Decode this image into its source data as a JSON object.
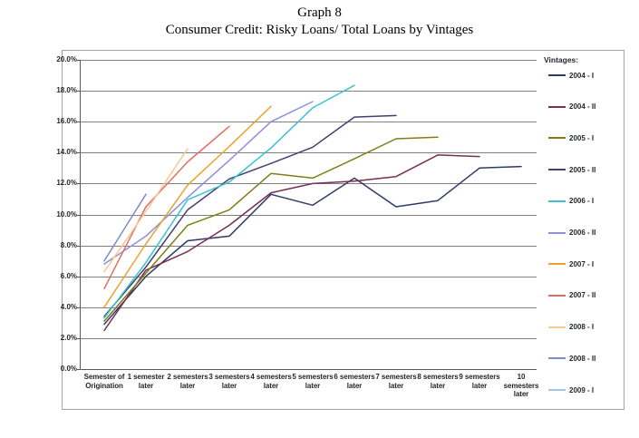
{
  "title": {
    "line1": "Graph 8",
    "line2": "Consumer Credit: Risky Loans/ Total Loans by Vintages"
  },
  "legend": {
    "header": "Vintages:"
  },
  "chart_data": {
    "type": "line",
    "title": "Graph 8",
    "subtitle": "Consumer Credit: Risky Loans/ Total Loans by Vintages",
    "xlabel": "",
    "ylabel": "",
    "grid": true,
    "legend_position": "right",
    "layout": {
      "grid_color": "#808080",
      "axis_color": "#595959",
      "border_color": "#a6a6a6",
      "label_color": "#262626"
    },
    "y_axis": {
      "min": 0,
      "max": 20,
      "step": 2,
      "unit": "%",
      "tick_labels": [
        "0.0%",
        "2.0%",
        "4.0%",
        "6.0%",
        "8.0%",
        "10.0%",
        "12.0%",
        "14.0%",
        "16.0%",
        "18.0%",
        "20.0%"
      ]
    },
    "categories": [
      "Semester of\nOrigination",
      "1 semester\nlater",
      "2 semesters\nlater",
      "3 semesters\nlater",
      "4 semesters\nlater",
      "5 semesters\nlater",
      "6 semesters\nlater",
      "7 semesters\nlater",
      "8 semesters\nlater",
      "9 semesters\nlater",
      "10\nsemesters\nlater"
    ],
    "series": [
      {
        "name": "2004 - I",
        "color": "#2e3b68",
        "values": [
          2.9,
          6.0,
          8.3,
          8.6,
          11.3,
          10.6,
          12.35,
          10.5,
          10.9,
          13.0,
          13.1
        ]
      },
      {
        "name": "2004 - II",
        "color": "#7a2e52",
        "values": [
          2.5,
          6.4,
          7.6,
          9.3,
          11.4,
          12.0,
          12.15,
          12.45,
          13.85,
          13.75
        ]
      },
      {
        "name": "2005 - I",
        "color": "#7f7d15",
        "values": [
          3.1,
          6.2,
          9.3,
          10.3,
          12.65,
          12.35,
          13.6,
          14.9,
          15.0
        ]
      },
      {
        "name": "2005 - II",
        "color": "#443e72",
        "values": [
          3.4,
          6.6,
          10.3,
          12.3,
          13.3,
          14.35,
          16.3,
          16.4
        ]
      },
      {
        "name": "2006 - I",
        "color": "#38c2d2",
        "values": [
          3.3,
          6.9,
          10.95,
          12.1,
          14.3,
          16.9,
          18.35
        ]
      },
      {
        "name": "2006 - II",
        "color": "#8f8fd8",
        "values": [
          6.8,
          8.6,
          11.1,
          13.5,
          16.0,
          17.3
        ]
      },
      {
        "name": "2007 - I",
        "color": "#eda128",
        "values": [
          4.0,
          8.1,
          11.9,
          14.4,
          17.0
        ]
      },
      {
        "name": "2007 - II",
        "color": "#e26d66",
        "values": [
          5.2,
          10.5,
          13.4,
          15.7
        ]
      },
      {
        "name": "2008 - I",
        "color": "#f7c795",
        "values": [
          6.3,
          10.2,
          14.25
        ]
      },
      {
        "name": "2008 - II",
        "color": "#7e8cc8",
        "values": [
          7.0,
          11.3
        ]
      },
      {
        "name": "2009 - I",
        "color": "#9fc8e8",
        "values": []
      }
    ]
  }
}
